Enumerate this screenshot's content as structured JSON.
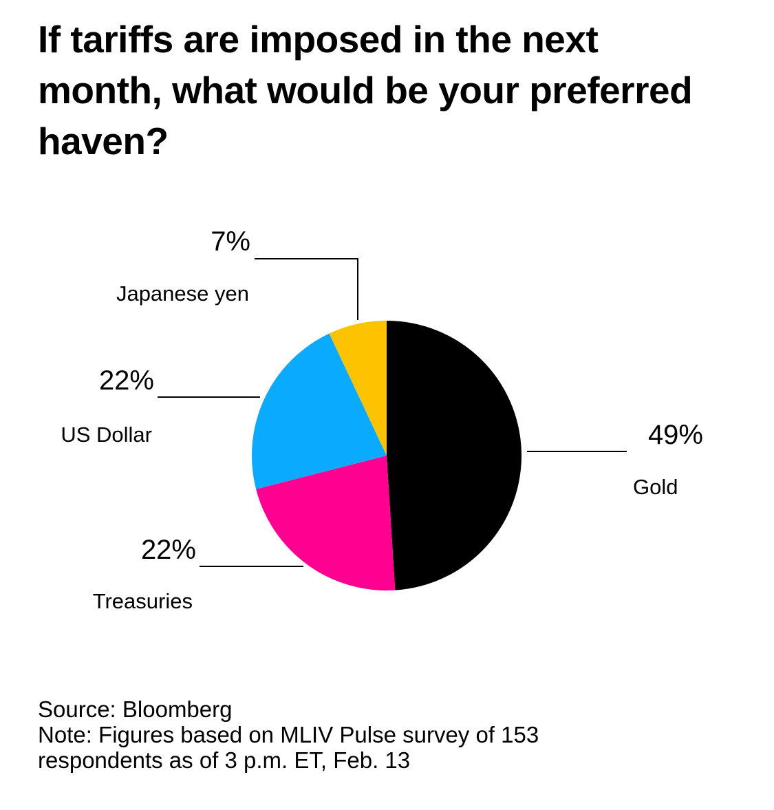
{
  "chart_data": {
    "type": "pie",
    "title": "If tariffs are imposed in the next month, what would be your preferred haven?",
    "slices": [
      {
        "label": "Gold",
        "value": 49,
        "value_label": "49%",
        "color": "#000000"
      },
      {
        "label": "Treasuries",
        "value": 22,
        "value_label": "22%",
        "color": "#ff0090"
      },
      {
        "label": "US Dollar",
        "value": 22,
        "value_label": "22%",
        "color": "#0aabff"
      },
      {
        "label": "Japanese yen",
        "value": 7,
        "value_label": "7%",
        "color": "#fdc300"
      }
    ],
    "source": "Source: Bloomberg",
    "note_line1": "Note: Figures based on MLIV Pulse survey of 153",
    "note_line2": "respondents as of 3 p.m. ET, Feb. 13"
  }
}
